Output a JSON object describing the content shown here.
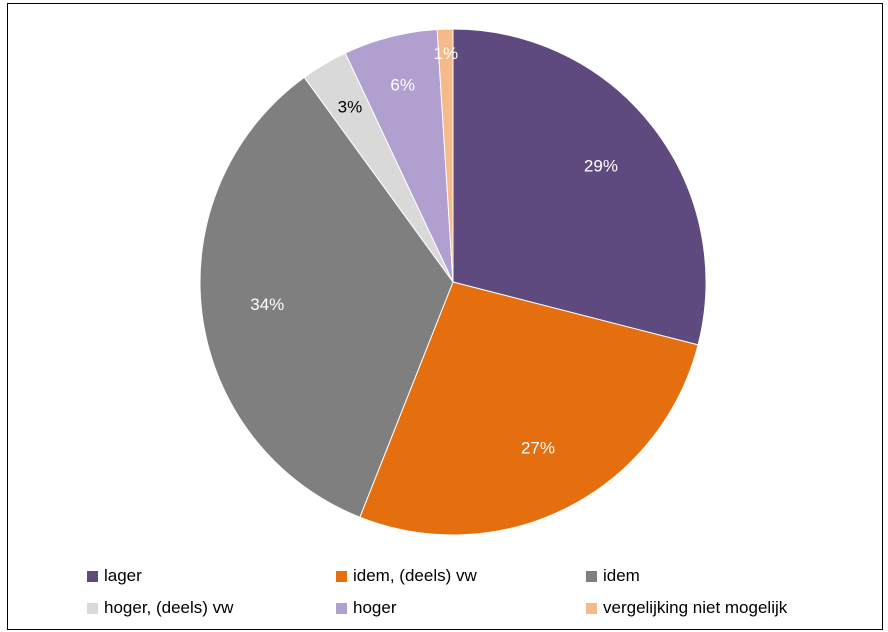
{
  "chart_data": {
    "type": "pie",
    "title": "",
    "slices": [
      {
        "label": "lager",
        "value": 29,
        "display": "29%",
        "color": "#5e4a7e",
        "label_color": "#ffffff"
      },
      {
        "label": "idem, (deels) vw",
        "value": 27,
        "display": "27%",
        "color": "#e56e0f",
        "label_color": "#ffffff"
      },
      {
        "label": "idem",
        "value": 34,
        "display": "34%",
        "color": "#7f7f7f",
        "label_color": "#ffffff"
      },
      {
        "label": "hoger, (deels) vw",
        "value": 3,
        "display": "3%",
        "color": "#d9d9d9",
        "label_color": "#000000"
      },
      {
        "label": "hoger",
        "value": 6,
        "display": "6%",
        "color": "#b09fcf",
        "label_color": "#ffffff"
      },
      {
        "label": "vergelijking niet mogelijk",
        "value": 1,
        "display": "1%",
        "color": "#f6b98a",
        "label_color": "#ffffff"
      }
    ],
    "start": "12 o'clock",
    "direction": "clockwise",
    "legend_position": "bottom"
  }
}
